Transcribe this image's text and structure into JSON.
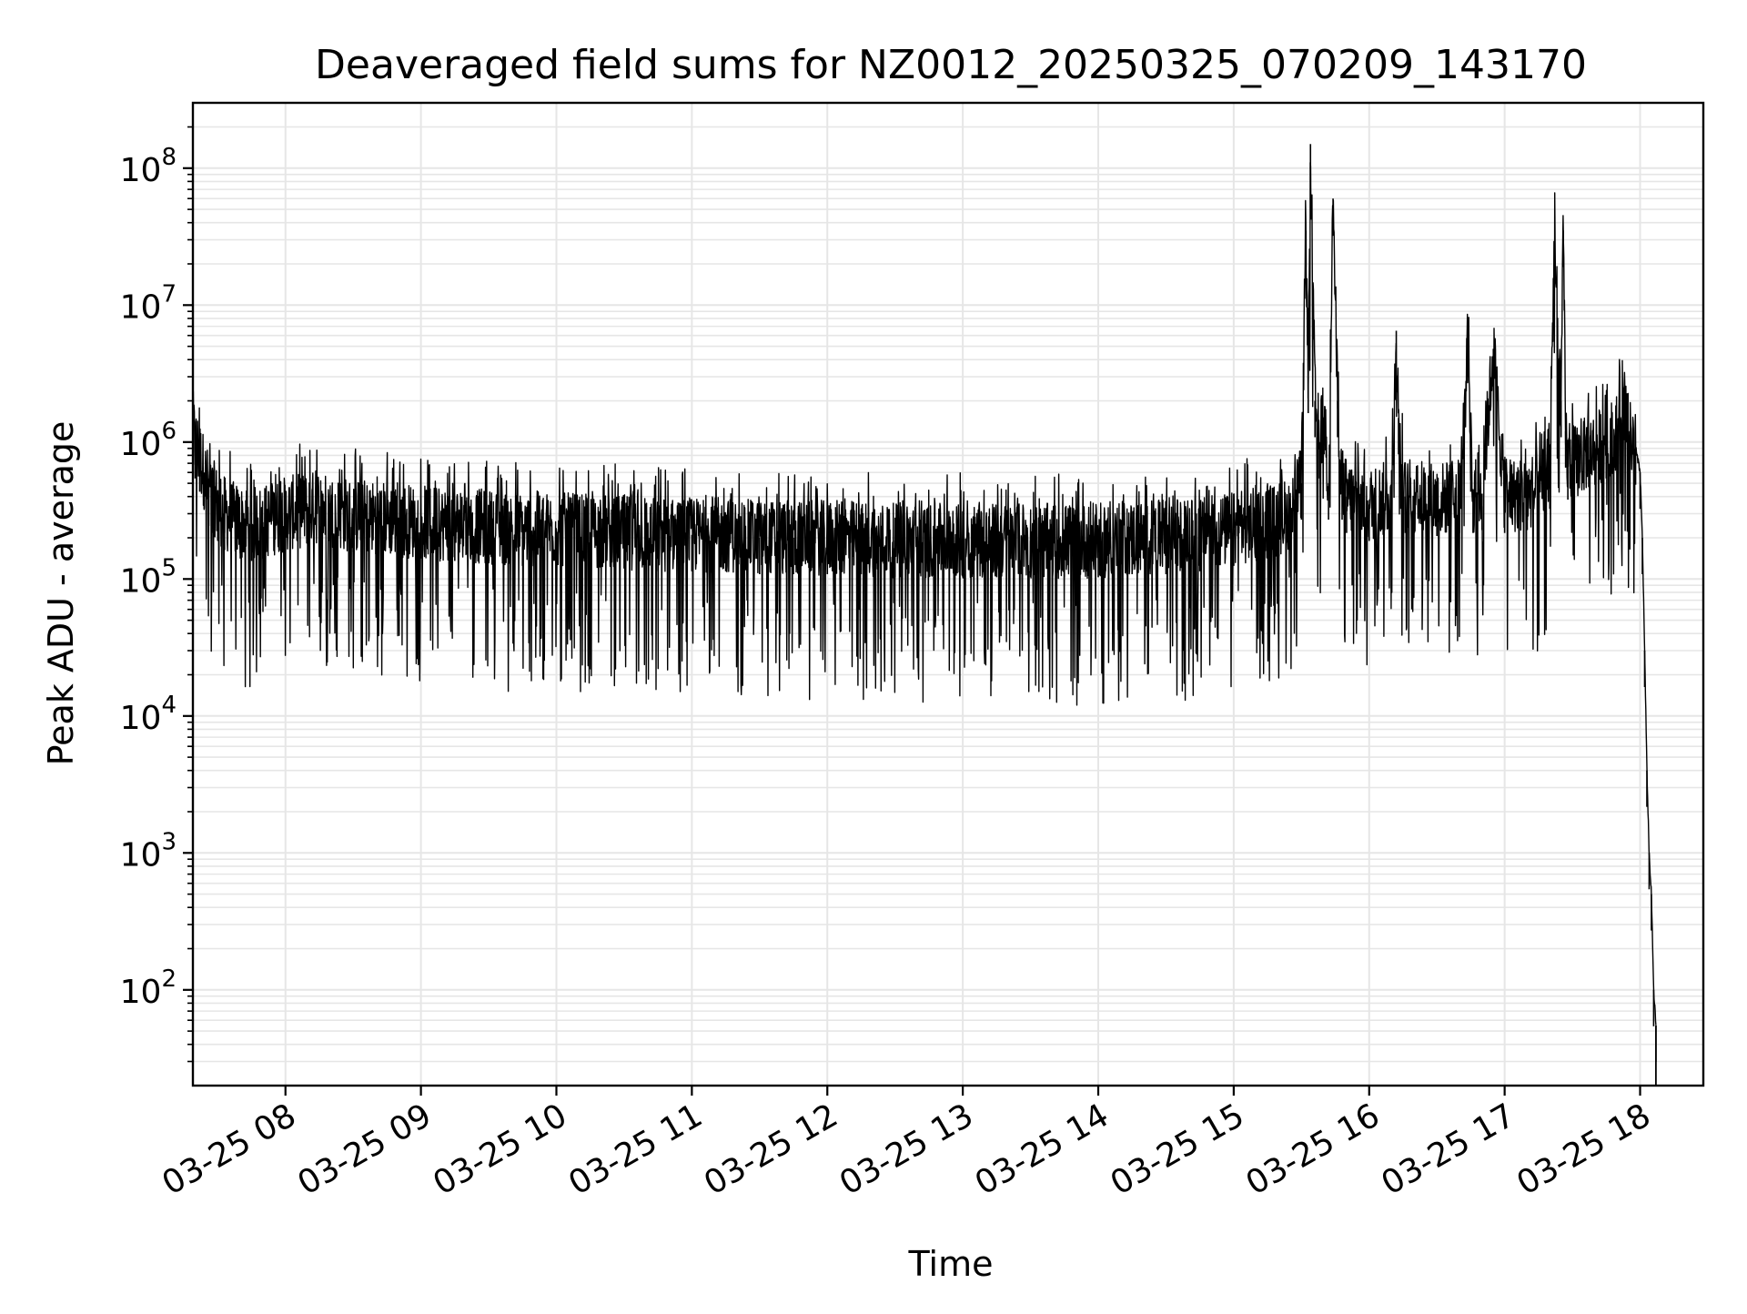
{
  "chart_data": {
    "type": "line",
    "title": "Deaveraged field sums for NZ0012_20250325_070209_143170",
    "xlabel": "Time",
    "ylabel": "Peak ADU - average",
    "x_axis": {
      "kind": "date",
      "range": [
        "03-25 07:19",
        "03-25 18:28"
      ],
      "ticks": [
        "03-25 08",
        "03-25 09",
        "03-25 10",
        "03-25 11",
        "03-25 12",
        "03-25 13",
        "03-25 14",
        "03-25 15",
        "03-25 16",
        "03-25 17",
        "03-25 18"
      ]
    },
    "y_axis": {
      "scale": "log",
      "range": [
        20,
        300000000
      ],
      "ticks": [
        {
          "base": "10",
          "exp": "2"
        },
        {
          "base": "10",
          "exp": "3"
        },
        {
          "base": "10",
          "exp": "4"
        },
        {
          "base": "10",
          "exp": "5"
        },
        {
          "base": "10",
          "exp": "6"
        },
        {
          "base": "10",
          "exp": "7"
        },
        {
          "base": "10",
          "exp": "8"
        }
      ]
    },
    "grid": {
      "major": true,
      "minor_y": true
    },
    "series_color": "#000000",
    "grid_color": "#e6e6e6",
    "series": [
      {
        "x": [
          "07:19",
          "07:20",
          "07:22",
          "07:24",
          "07:26",
          "07:28",
          "07:30",
          "07:33",
          "07:36",
          "07:40",
          "07:45",
          "07:50",
          "08:00",
          "08:10",
          "08:15",
          "08:20",
          "08:30",
          "08:40",
          "08:50",
          "09:00",
          "09:15",
          "09:30",
          "09:45",
          "10:00",
          "10:15",
          "10:30",
          "10:45",
          "11:00",
          "11:15",
          "11:30",
          "11:45",
          "12:00",
          "12:15",
          "12:30",
          "12:45",
          "13:00",
          "13:15",
          "13:30",
          "13:45",
          "14:00",
          "14:15",
          "14:30",
          "14:45",
          "15:00",
          "15:10",
          "15:20",
          "15:25",
          "15:30",
          "15:32",
          "15:33",
          "15:34",
          "15:36",
          "15:38",
          "15:40",
          "15:42",
          "15:44",
          "15:46",
          "15:48",
          "15:50",
          "16:00",
          "16:10",
          "16:12",
          "16:13",
          "16:14",
          "16:16",
          "16:20",
          "16:30",
          "16:40",
          "16:44",
          "16:45",
          "16:46",
          "16:50",
          "16:55",
          "17:00",
          "17:10",
          "17:15",
          "17:20",
          "17:22",
          "17:25",
          "17:26",
          "17:27",
          "17:28",
          "17:30",
          "17:40",
          "17:45",
          "17:50",
          "17:53",
          "17:55",
          "17:58",
          "18:00",
          "18:01",
          "18:02",
          "18:03",
          "18:04",
          "18:05",
          "18:06",
          "18:07"
        ],
        "y": [
          1300000,
          1000000,
          800000,
          600000,
          450000,
          400000,
          350000,
          300000,
          280000,
          260000,
          250000,
          260000,
          300000,
          320000,
          340000,
          310000,
          290000,
          280000,
          270000,
          260000,
          250000,
          240000,
          230000,
          230000,
          220000,
          220000,
          210000,
          210000,
          210000,
          200000,
          200000,
          200000,
          200000,
          190000,
          190000,
          190000,
          190000,
          190000,
          190000,
          190000,
          200000,
          200000,
          210000,
          230000,
          250000,
          270000,
          300000,
          500000,
          35000000,
          3000000,
          150000000,
          2000000,
          1000000,
          1500000,
          500000,
          60000000,
          2000000,
          500000,
          400000,
          350000,
          400000,
          6500000,
          1500000,
          600000,
          400000,
          400000,
          380000,
          400000,
          5500000,
          800000,
          400000,
          420000,
          4800000,
          400000,
          420000,
          450000,
          600000,
          29000000,
          2000000,
          35000000,
          1200000,
          700000,
          700000,
          900000,
          1000000,
          1200000,
          1900000,
          1100000,
          900000,
          600000,
          200000,
          30000,
          4000,
          1000,
          500,
          100,
          55
        ]
      }
    ]
  }
}
